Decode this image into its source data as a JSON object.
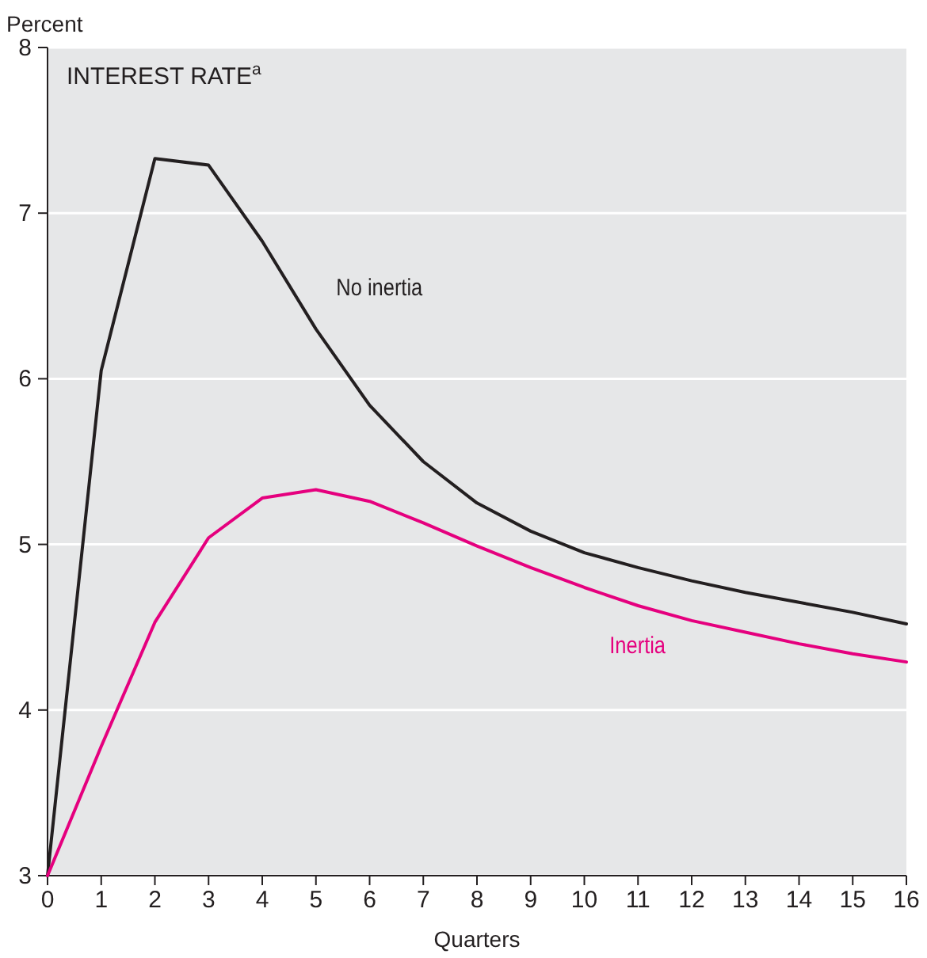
{
  "chart_data": {
    "type": "line",
    "title": "INTEREST RATE$^{a}$",
    "xlabel": "Quarters",
    "ylabel": "Percent",
    "x": [
      0,
      1,
      2,
      3,
      4,
      5,
      6,
      7,
      8,
      9,
      10,
      11,
      12,
      13,
      14,
      15,
      16
    ],
    "series": [
      {
        "name": "No inertia",
        "color": "#231f20",
        "values": [
          3,
          6.05,
          7.33,
          7.29,
          6.83,
          6.3,
          5.84,
          5.5,
          5.25,
          5.08,
          4.95,
          4.86,
          4.78,
          4.71,
          4.65,
          4.59,
          4.52
        ]
      },
      {
        "name": "Inertia",
        "color": "#e5007e",
        "values": [
          3,
          3.78,
          4.53,
          5.04,
          5.28,
          5.33,
          5.26,
          5.13,
          4.99,
          4.86,
          4.74,
          4.63,
          4.54,
          4.47,
          4.4,
          4.34,
          4.29
        ]
      }
    ],
    "xlim": [
      0,
      16
    ],
    "xticks": [
      0,
      1,
      2,
      3,
      4,
      5,
      6,
      7,
      8,
      9,
      10,
      11,
      12,
      13,
      14,
      15,
      16
    ],
    "ylim": [
      3,
      8
    ],
    "yticks": [
      3,
      4,
      5,
      6,
      7,
      8
    ],
    "grid": "y",
    "marker": "none",
    "line_style": "solid"
  }
}
